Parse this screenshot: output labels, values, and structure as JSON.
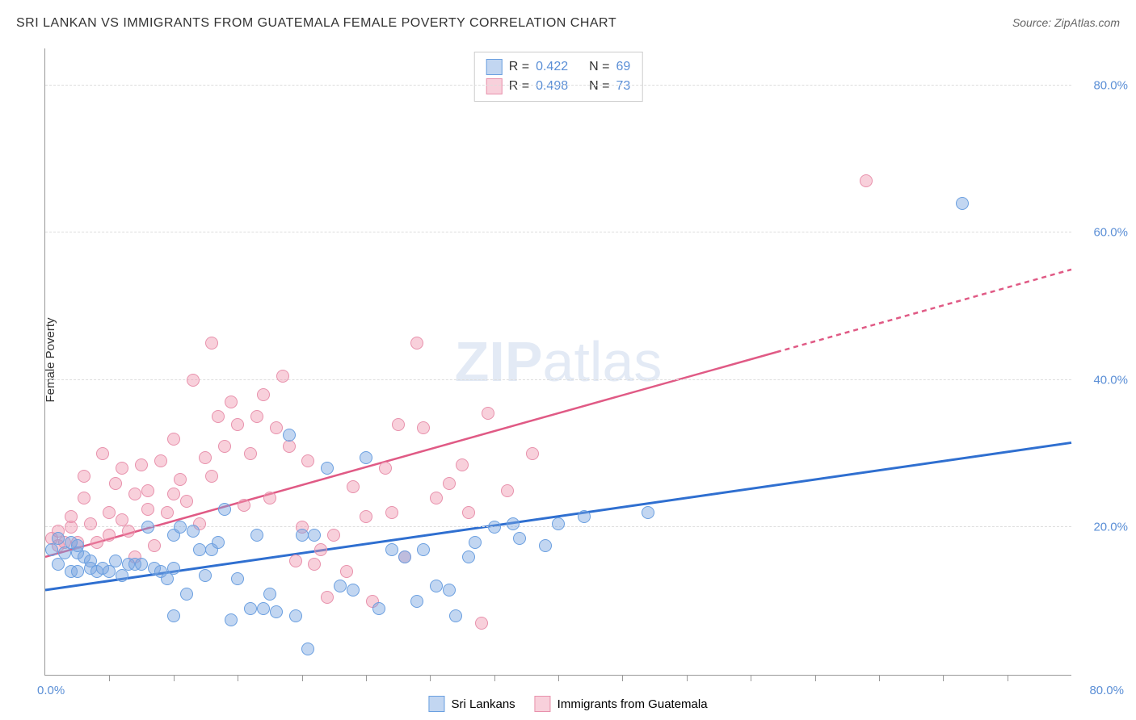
{
  "title": "SRI LANKAN VS IMMIGRANTS FROM GUATEMALA FEMALE POVERTY CORRELATION CHART",
  "source": "Source: ZipAtlas.com",
  "watermark": {
    "zip": "ZIP",
    "atlas": "atlas"
  },
  "y_axis_label": "Female Poverty",
  "chart": {
    "type": "scatter",
    "xlim": [
      0,
      80
    ],
    "ylim": [
      0,
      85
    ],
    "y_ticks": [
      20,
      40,
      60,
      80
    ],
    "y_tick_labels": [
      "20.0%",
      "40.0%",
      "60.0%",
      "80.0%"
    ],
    "x_tick_min_label": "0.0%",
    "x_tick_max_label": "80.0%",
    "x_minor_ticks": [
      5,
      10,
      15,
      20,
      25,
      30,
      35,
      40,
      45,
      50,
      55,
      60,
      65,
      70,
      75
    ],
    "grid_color": "#dddddd",
    "background_color": "#ffffff",
    "axis_color": "#999999",
    "point_radius": 8
  },
  "series": {
    "a": {
      "label": "Sri Lankans",
      "fill": "rgba(120,165,225,0.45)",
      "stroke": "#6a9fe0",
      "trend_color": "#2f6fd0",
      "trend_width": 3,
      "R_label": "R =",
      "R": "0.422",
      "N_label": "N =",
      "N": "69",
      "trend": {
        "x1": 0,
        "y1": 11.5,
        "x2": 80,
        "y2": 31.5
      },
      "points": [
        [
          0.5,
          17
        ],
        [
          1,
          15
        ],
        [
          1,
          18.5
        ],
        [
          1.5,
          16.5
        ],
        [
          2,
          18
        ],
        [
          2,
          14
        ],
        [
          2.5,
          16.5
        ],
        [
          2.5,
          14
        ],
        [
          2.5,
          17.5
        ],
        [
          3,
          16
        ],
        [
          3.5,
          15.5
        ],
        [
          3.5,
          14.5
        ],
        [
          4,
          14
        ],
        [
          4.5,
          14.5
        ],
        [
          5,
          14
        ],
        [
          5.5,
          15.5
        ],
        [
          6,
          13.5
        ],
        [
          6.5,
          15
        ],
        [
          7,
          15
        ],
        [
          7.5,
          15
        ],
        [
          8,
          20
        ],
        [
          8.5,
          14.5
        ],
        [
          9,
          14
        ],
        [
          9.5,
          13
        ],
        [
          10,
          19
        ],
        [
          10,
          14.5
        ],
        [
          10,
          8
        ],
        [
          10.5,
          20
        ],
        [
          11,
          11
        ],
        [
          11.5,
          19.5
        ],
        [
          12,
          17
        ],
        [
          12.5,
          13.5
        ],
        [
          13,
          17
        ],
        [
          13.5,
          18
        ],
        [
          14,
          22.5
        ],
        [
          14.5,
          7.5
        ],
        [
          15,
          13
        ],
        [
          16,
          9
        ],
        [
          16.5,
          19
        ],
        [
          17,
          9
        ],
        [
          17.5,
          11
        ],
        [
          18,
          8.5
        ],
        [
          19,
          32.5
        ],
        [
          19.5,
          8
        ],
        [
          20,
          19
        ],
        [
          20.5,
          3.5
        ],
        [
          21,
          19
        ],
        [
          22,
          28
        ],
        [
          23,
          12
        ],
        [
          24,
          11.5
        ],
        [
          25,
          29.5
        ],
        [
          26,
          9
        ],
        [
          27,
          17
        ],
        [
          28,
          16
        ],
        [
          29,
          10
        ],
        [
          29.5,
          17
        ],
        [
          30.5,
          12
        ],
        [
          31.5,
          11.5
        ],
        [
          32,
          8
        ],
        [
          33,
          16
        ],
        [
          33.5,
          18
        ],
        [
          35,
          20
        ],
        [
          36.5,
          20.5
        ],
        [
          37,
          18.5
        ],
        [
          39,
          17.5
        ],
        [
          40,
          20.5
        ],
        [
          42,
          21.5
        ],
        [
          47,
          22
        ],
        [
          71.5,
          64
        ]
      ]
    },
    "b": {
      "label": "Immigrants from Guatemala",
      "fill": "rgba(240,150,175,0.45)",
      "stroke": "#e891ac",
      "trend_color": "#e05a85",
      "trend_width": 2.5,
      "trend_dash_from": 57,
      "R_label": "R =",
      "R": "0.498",
      "N_label": "N =",
      "N": "73",
      "trend": {
        "x1": 0,
        "y1": 16,
        "x2": 80,
        "y2": 55
      },
      "points": [
        [
          0.5,
          18.5
        ],
        [
          1,
          17.5
        ],
        [
          1,
          19.5
        ],
        [
          1.5,
          18
        ],
        [
          2,
          20
        ],
        [
          2,
          21.5
        ],
        [
          2.5,
          18
        ],
        [
          3,
          24
        ],
        [
          3,
          27
        ],
        [
          3.5,
          20.5
        ],
        [
          4,
          18
        ],
        [
          4.5,
          30
        ],
        [
          5,
          19
        ],
        [
          5,
          22
        ],
        [
          5.5,
          26
        ],
        [
          6,
          21
        ],
        [
          6,
          28
        ],
        [
          6.5,
          19.5
        ],
        [
          7,
          16
        ],
        [
          7,
          24.5
        ],
        [
          7.5,
          28.5
        ],
        [
          8,
          22.5
        ],
        [
          8,
          25
        ],
        [
          8.5,
          17.5
        ],
        [
          9,
          29
        ],
        [
          9.5,
          22
        ],
        [
          10,
          24.5
        ],
        [
          10,
          32
        ],
        [
          10.5,
          26.5
        ],
        [
          11,
          23.5
        ],
        [
          11.5,
          40
        ],
        [
          12,
          20.5
        ],
        [
          12.5,
          29.5
        ],
        [
          13,
          27
        ],
        [
          13,
          45
        ],
        [
          13.5,
          35
        ],
        [
          14,
          31
        ],
        [
          14.5,
          37
        ],
        [
          15,
          34
        ],
        [
          15.5,
          23
        ],
        [
          16,
          30
        ],
        [
          16.5,
          35
        ],
        [
          17,
          38
        ],
        [
          17.5,
          24
        ],
        [
          18,
          33.5
        ],
        [
          18.5,
          40.5
        ],
        [
          19,
          31
        ],
        [
          19.5,
          15.5
        ],
        [
          20,
          20
        ],
        [
          20.5,
          29
        ],
        [
          21,
          15
        ],
        [
          21.5,
          17
        ],
        [
          22,
          10.5
        ],
        [
          22.5,
          19
        ],
        [
          23.5,
          14
        ],
        [
          24,
          25.5
        ],
        [
          25,
          21.5
        ],
        [
          25.5,
          10
        ],
        [
          26.5,
          28
        ],
        [
          27,
          22
        ],
        [
          27.5,
          34
        ],
        [
          28,
          16
        ],
        [
          29,
          45
        ],
        [
          29.5,
          33.5
        ],
        [
          30.5,
          24
        ],
        [
          31.5,
          26
        ],
        [
          32.5,
          28.5
        ],
        [
          33,
          22
        ],
        [
          34,
          7
        ],
        [
          34.5,
          35.5
        ],
        [
          36,
          25
        ],
        [
          38,
          30
        ],
        [
          64,
          67
        ]
      ]
    }
  }
}
